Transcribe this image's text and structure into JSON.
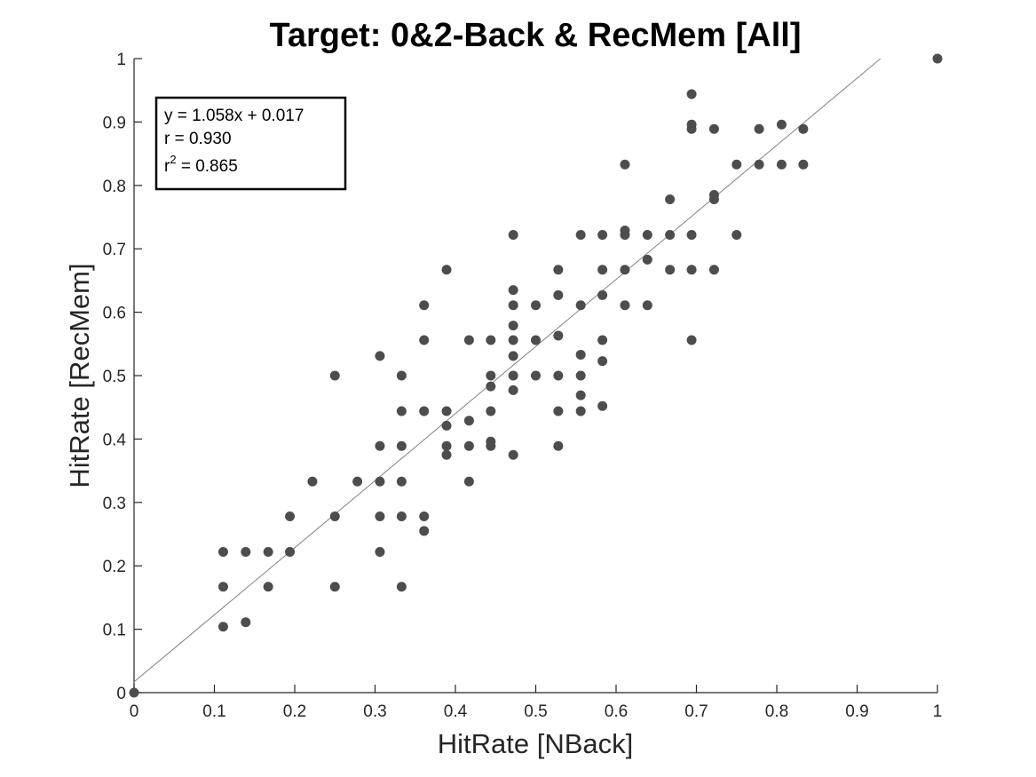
{
  "chart_data": {
    "type": "scatter",
    "title": "Target: 0&2-Back & RecMem [All]",
    "xlabel": "HitRate [NBack]",
    "ylabel": "HitRate [RecMem]",
    "xlim": [
      0,
      1
    ],
    "ylim": [
      0,
      1
    ],
    "xticks": [
      "0",
      "0.1",
      "0.2",
      "0.3",
      "0.4",
      "0.5",
      "0.6",
      "0.7",
      "0.8",
      "0.9",
      "1"
    ],
    "yticks": [
      "0",
      "0.1",
      "0.2",
      "0.3",
      "0.4",
      "0.5",
      "0.6",
      "0.7",
      "0.8",
      "0.9",
      "1"
    ],
    "grid": false,
    "marker_color": "#4d4d4d",
    "fit_line_color": "#808080",
    "fit": {
      "slope": 1.058,
      "intercept": 0.017,
      "x_range": [
        0,
        0.929
      ]
    },
    "annotation": {
      "line1": "y = 1.058x + 0.017",
      "line2": "r = 0.930",
      "line3_prefix": "r",
      "line3_sup": "2",
      "line3_suffix": " = 0.865"
    },
    "points": [
      [
        0,
        0
      ],
      [
        1,
        1
      ],
      [
        0.111,
        0.222
      ],
      [
        0.111,
        0.167
      ],
      [
        0.111,
        0.104
      ],
      [
        0.139,
        0.222
      ],
      [
        0.139,
        0.111
      ],
      [
        0.167,
        0.222
      ],
      [
        0.167,
        0.167
      ],
      [
        0.194,
        0.278
      ],
      [
        0.194,
        0.222
      ],
      [
        0.222,
        0.333
      ],
      [
        0.25,
        0.5
      ],
      [
        0.25,
        0.278
      ],
      [
        0.25,
        0.167
      ],
      [
        0.278,
        0.333
      ],
      [
        0.306,
        0.531
      ],
      [
        0.306,
        0.389
      ],
      [
        0.306,
        0.333
      ],
      [
        0.306,
        0.278
      ],
      [
        0.306,
        0.222
      ],
      [
        0.333,
        0.5
      ],
      [
        0.333,
        0.444
      ],
      [
        0.333,
        0.389
      ],
      [
        0.333,
        0.333
      ],
      [
        0.333,
        0.278
      ],
      [
        0.333,
        0.167
      ],
      [
        0.361,
        0.611
      ],
      [
        0.361,
        0.556
      ],
      [
        0.361,
        0.444
      ],
      [
        0.361,
        0.278
      ],
      [
        0.361,
        0.255
      ],
      [
        0.389,
        0.667
      ],
      [
        0.389,
        0.444
      ],
      [
        0.389,
        0.421
      ],
      [
        0.389,
        0.389
      ],
      [
        0.389,
        0.375
      ],
      [
        0.417,
        0.556
      ],
      [
        0.417,
        0.429
      ],
      [
        0.417,
        0.389
      ],
      [
        0.417,
        0.333
      ],
      [
        0.444,
        0.556
      ],
      [
        0.444,
        0.5
      ],
      [
        0.444,
        0.483
      ],
      [
        0.444,
        0.444
      ],
      [
        0.444,
        0.396
      ],
      [
        0.444,
        0.389
      ],
      [
        0.472,
        0.722
      ],
      [
        0.472,
        0.635
      ],
      [
        0.472,
        0.611
      ],
      [
        0.472,
        0.579
      ],
      [
        0.472,
        0.556
      ],
      [
        0.472,
        0.531
      ],
      [
        0.472,
        0.5
      ],
      [
        0.472,
        0.477
      ],
      [
        0.472,
        0.375
      ],
      [
        0.5,
        0.611
      ],
      [
        0.5,
        0.556
      ],
      [
        0.5,
        0.5
      ],
      [
        0.528,
        0.667
      ],
      [
        0.528,
        0.627
      ],
      [
        0.528,
        0.563
      ],
      [
        0.528,
        0.5
      ],
      [
        0.528,
        0.444
      ],
      [
        0.528,
        0.389
      ],
      [
        0.556,
        0.722
      ],
      [
        0.556,
        0.611
      ],
      [
        0.556,
        0.533
      ],
      [
        0.556,
        0.5
      ],
      [
        0.556,
        0.469
      ],
      [
        0.556,
        0.444
      ],
      [
        0.583,
        0.722
      ],
      [
        0.583,
        0.667
      ],
      [
        0.583,
        0.627
      ],
      [
        0.583,
        0.556
      ],
      [
        0.583,
        0.523
      ],
      [
        0.583,
        0.452
      ],
      [
        0.611,
        0.833
      ],
      [
        0.611,
        0.729
      ],
      [
        0.611,
        0.722
      ],
      [
        0.611,
        0.667
      ],
      [
        0.611,
        0.611
      ],
      [
        0.639,
        0.722
      ],
      [
        0.639,
        0.683
      ],
      [
        0.639,
        0.611
      ],
      [
        0.667,
        0.778
      ],
      [
        0.667,
        0.722
      ],
      [
        0.667,
        0.667
      ],
      [
        0.694,
        0.944
      ],
      [
        0.694,
        0.896
      ],
      [
        0.694,
        0.889
      ],
      [
        0.694,
        0.722
      ],
      [
        0.694,
        0.667
      ],
      [
        0.694,
        0.556
      ],
      [
        0.722,
        0.889
      ],
      [
        0.722,
        0.785
      ],
      [
        0.722,
        0.778
      ],
      [
        0.722,
        0.667
      ],
      [
        0.75,
        0.833
      ],
      [
        0.75,
        0.722
      ],
      [
        0.778,
        0.889
      ],
      [
        0.778,
        0.833
      ],
      [
        0.806,
        0.896
      ],
      [
        0.806,
        0.833
      ],
      [
        0.833,
        0.889
      ],
      [
        0.833,
        0.833
      ]
    ]
  }
}
